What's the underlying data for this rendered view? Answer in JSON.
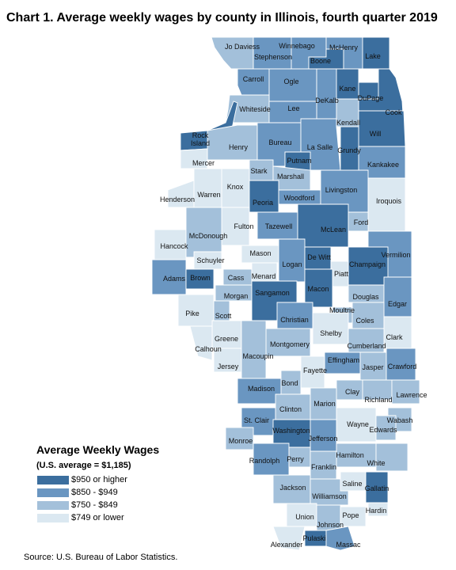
{
  "title": "Chart 1. Average weekly wages by county in Illinois, fourth quarter 2019",
  "source": "Source: U.S. Bureau of Labor Statistics.",
  "legend": {
    "title": "Average Weekly Wages",
    "subtitle": "(U.S. average = $1,185)",
    "classes": [
      {
        "label": "$950 or higher",
        "color": "#3b6e9e"
      },
      {
        "label": "$850 - $949",
        "color": "#6a96c1"
      },
      {
        "label": "$750 - $849",
        "color": "#a3c0da"
      },
      {
        "label": "$749 or lower",
        "color": "#dbe8f1"
      }
    ]
  },
  "counties": [
    {
      "name": "Jo Daviess",
      "class": 2
    },
    {
      "name": "Stephenson",
      "class": 1
    },
    {
      "name": "Winnebago",
      "class": 1
    },
    {
      "name": "Boone",
      "class": 0
    },
    {
      "name": "McHenry",
      "class": 1
    },
    {
      "name": "Lake",
      "class": 0
    },
    {
      "name": "Carroll",
      "class": 1
    },
    {
      "name": "Ogle",
      "class": 1
    },
    {
      "name": "DeKalb",
      "class": 1
    },
    {
      "name": "Kane",
      "class": 0
    },
    {
      "name": "DuPage",
      "class": 0
    },
    {
      "name": "Cook",
      "class": 0
    },
    {
      "name": "Whiteside",
      "class": 2
    },
    {
      "name": "Lee",
      "class": 1
    },
    {
      "name": "Kendall",
      "class": 2
    },
    {
      "name": "Will",
      "class": 0
    },
    {
      "name": "Rock Island",
      "class": 0
    },
    {
      "name": "Henry",
      "class": 2
    },
    {
      "name": "Bureau",
      "class": 1
    },
    {
      "name": "La Salle",
      "class": 1
    },
    {
      "name": "Grundy",
      "class": 0
    },
    {
      "name": "Mercer",
      "class": 3
    },
    {
      "name": "Putnam",
      "class": 0
    },
    {
      "name": "Stark",
      "class": 2
    },
    {
      "name": "Marshall",
      "class": 2
    },
    {
      "name": "Kankakee",
      "class": 1
    },
    {
      "name": "Knox",
      "class": 3
    },
    {
      "name": "Henderson",
      "class": 3
    },
    {
      "name": "Warren",
      "class": 3
    },
    {
      "name": "Peoria",
      "class": 0
    },
    {
      "name": "Woodford",
      "class": 1
    },
    {
      "name": "Livingston",
      "class": 1
    },
    {
      "name": "Iroquois",
      "class": 3
    },
    {
      "name": "Fulton",
      "class": 3
    },
    {
      "name": "Tazewell",
      "class": 1
    },
    {
      "name": "McLean",
      "class": 0
    },
    {
      "name": "Ford",
      "class": 2
    },
    {
      "name": "Hancock",
      "class": 3
    },
    {
      "name": "McDonough",
      "class": 2
    },
    {
      "name": "Mason",
      "class": 3
    },
    {
      "name": "Vermilion",
      "class": 1
    },
    {
      "name": "Schuyler",
      "class": 3
    },
    {
      "name": "Logan",
      "class": 1
    },
    {
      "name": "De Witt",
      "class": 0
    },
    {
      "name": "Champaign",
      "class": 0
    },
    {
      "name": "Adams",
      "class": 1
    },
    {
      "name": "Brown",
      "class": 0
    },
    {
      "name": "Cass",
      "class": 2
    },
    {
      "name": "Menard",
      "class": 3
    },
    {
      "name": "Piatt",
      "class": 3
    },
    {
      "name": "Morgan",
      "class": 2
    },
    {
      "name": "Sangamon",
      "class": 0
    },
    {
      "name": "Macon",
      "class": 0
    },
    {
      "name": "Douglas",
      "class": 2
    },
    {
      "name": "Edgar",
      "class": 1
    },
    {
      "name": "Pike",
      "class": 3
    },
    {
      "name": "Scott",
      "class": 2
    },
    {
      "name": "Moultrie",
      "class": 2
    },
    {
      "name": "Christian",
      "class": 1
    },
    {
      "name": "Coles",
      "class": 2
    },
    {
      "name": "Greene",
      "class": 3
    },
    {
      "name": "Shelby",
      "class": 3
    },
    {
      "name": "Clark",
      "class": 3
    },
    {
      "name": "Calhoun",
      "class": 3
    },
    {
      "name": "Montgomery",
      "class": 2
    },
    {
      "name": "Cumberland",
      "class": 2
    },
    {
      "name": "Jersey",
      "class": 3
    },
    {
      "name": "Macoupin",
      "class": 2
    },
    {
      "name": "Effingham",
      "class": 1
    },
    {
      "name": "Jasper",
      "class": 2
    },
    {
      "name": "Crawford",
      "class": 1
    },
    {
      "name": "Fayette",
      "class": 3
    },
    {
      "name": "Madison",
      "class": 1
    },
    {
      "name": "Bond",
      "class": 2
    },
    {
      "name": "Clay",
      "class": 2
    },
    {
      "name": "Richland",
      "class": 2
    },
    {
      "name": "Lawrence",
      "class": 2
    },
    {
      "name": "St. Clair",
      "class": 1
    },
    {
      "name": "Clinton",
      "class": 2
    },
    {
      "name": "Marion",
      "class": 2
    },
    {
      "name": "Wabash",
      "class": 2
    },
    {
      "name": "Wayne",
      "class": 3
    },
    {
      "name": "Edwards",
      "class": 2
    },
    {
      "name": "Monroe",
      "class": 2
    },
    {
      "name": "Washington",
      "class": 0
    },
    {
      "name": "Jefferson",
      "class": 1
    },
    {
      "name": "Randolph",
      "class": 1
    },
    {
      "name": "Perry",
      "class": 2
    },
    {
      "name": "Hamilton",
      "class": 2
    },
    {
      "name": "White",
      "class": 2
    },
    {
      "name": "Franklin",
      "class": 2
    },
    {
      "name": "Jackson",
      "class": 2
    },
    {
      "name": "Williamson",
      "class": 2
    },
    {
      "name": "Saline",
      "class": 3
    },
    {
      "name": "Gallatin",
      "class": 0
    },
    {
      "name": "Hardin",
      "class": 3
    },
    {
      "name": "Pope",
      "class": 3
    },
    {
      "name": "Union",
      "class": 3
    },
    {
      "name": "Johnson",
      "class": 2
    },
    {
      "name": "Alexander",
      "class": 3
    },
    {
      "name": "Pulaski",
      "class": 0
    },
    {
      "name": "Massac",
      "class": 1
    }
  ]
}
